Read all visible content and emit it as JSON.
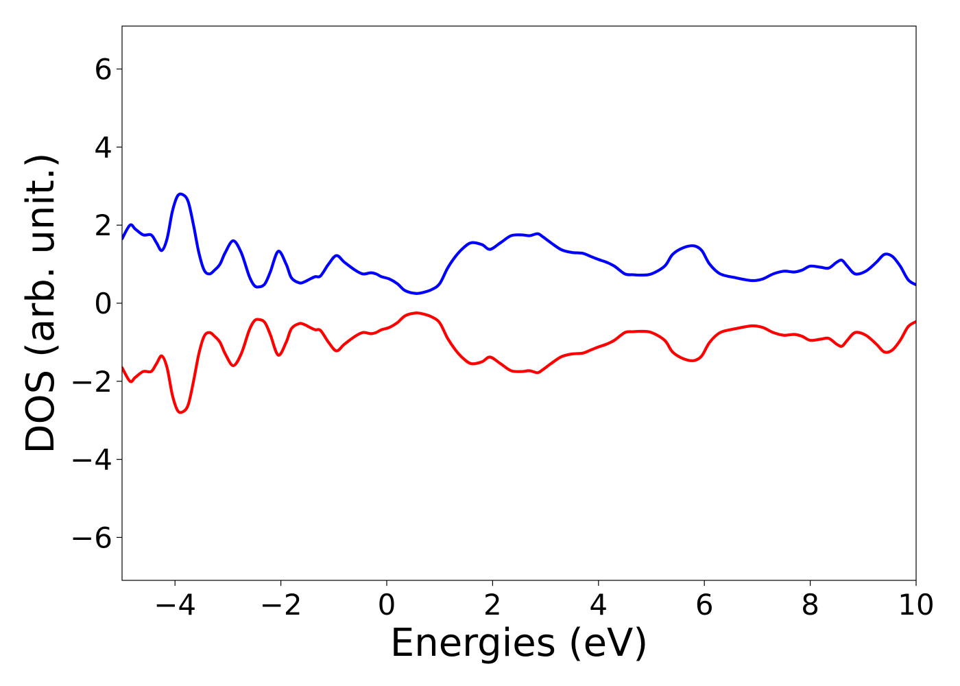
{
  "chart_data": {
    "type": "line",
    "title": "",
    "xlabel": "Energies (eV)",
    "ylabel": "DOS (arb. unit.)",
    "xlim": [
      -5,
      10
    ],
    "ylim": [
      -7.1,
      7.1
    ],
    "x_ticks": [
      -4,
      -2,
      0,
      2,
      4,
      6,
      8,
      10
    ],
    "y_ticks": [
      -6,
      -4,
      -2,
      0,
      2,
      4,
      6
    ],
    "grid": false,
    "legend": "none",
    "series": [
      {
        "color": "#0000ff",
        "x": [
          -5.0,
          -4.85,
          -4.75,
          -4.6,
          -4.45,
          -4.35,
          -4.25,
          -4.15,
          -4.05,
          -3.95,
          -3.85,
          -3.75,
          -3.65,
          -3.55,
          -3.45,
          -3.35,
          -3.25,
          -3.15,
          -3.05,
          -2.9,
          -2.75,
          -2.6,
          -2.5,
          -2.4,
          -2.3,
          -2.2,
          -2.05,
          -1.9,
          -1.8,
          -1.65,
          -1.55,
          -1.45,
          -1.35,
          -1.25,
          -1.1,
          -0.95,
          -0.8,
          -0.6,
          -0.45,
          -0.3,
          -0.2,
          -0.1,
          0.05,
          0.2,
          0.35,
          0.55,
          0.7,
          0.85,
          1.0,
          1.15,
          1.3,
          1.45,
          1.6,
          1.8,
          1.95,
          2.15,
          2.35,
          2.55,
          2.7,
          2.85,
          2.95,
          3.1,
          3.3,
          3.5,
          3.7,
          3.85,
          4.0,
          4.15,
          4.3,
          4.5,
          4.65,
          4.8,
          5.0,
          5.25,
          5.4,
          5.6,
          5.8,
          5.95,
          6.1,
          6.3,
          6.6,
          6.9,
          7.1,
          7.3,
          7.5,
          7.7,
          7.85,
          8.0,
          8.2,
          8.35,
          8.5,
          8.6,
          8.7,
          8.85,
          9.05,
          9.25,
          9.4,
          9.55,
          9.7,
          9.85,
          10.0
        ],
        "y": [
          1.65,
          2.0,
          1.9,
          1.75,
          1.75,
          1.55,
          1.35,
          1.65,
          2.35,
          2.75,
          2.78,
          2.6,
          2.0,
          1.3,
          0.85,
          0.75,
          0.85,
          1.0,
          1.3,
          1.6,
          1.3,
          0.7,
          0.45,
          0.42,
          0.5,
          0.8,
          1.33,
          1.0,
          0.65,
          0.52,
          0.55,
          0.62,
          0.68,
          0.7,
          1.0,
          1.22,
          1.05,
          0.85,
          0.75,
          0.78,
          0.75,
          0.68,
          0.62,
          0.5,
          0.32,
          0.25,
          0.28,
          0.35,
          0.5,
          0.9,
          1.2,
          1.42,
          1.55,
          1.5,
          1.38,
          1.55,
          1.73,
          1.75,
          1.73,
          1.78,
          1.7,
          1.55,
          1.37,
          1.3,
          1.28,
          1.2,
          1.12,
          1.05,
          0.95,
          0.75,
          0.73,
          0.72,
          0.75,
          0.95,
          1.25,
          1.42,
          1.47,
          1.35,
          1.0,
          0.75,
          0.65,
          0.58,
          0.62,
          0.75,
          0.82,
          0.8,
          0.85,
          0.95,
          0.92,
          0.9,
          1.05,
          1.1,
          0.95,
          0.75,
          0.82,
          1.05,
          1.25,
          1.2,
          0.95,
          0.6,
          0.47
        ]
      },
      {
        "color": "#ff0000",
        "x": [
          -5.0,
          -4.85,
          -4.75,
          -4.6,
          -4.45,
          -4.35,
          -4.25,
          -4.15,
          -4.05,
          -3.95,
          -3.85,
          -3.75,
          -3.65,
          -3.55,
          -3.45,
          -3.35,
          -3.25,
          -3.15,
          -3.05,
          -2.9,
          -2.75,
          -2.6,
          -2.5,
          -2.4,
          -2.3,
          -2.2,
          -2.05,
          -1.9,
          -1.8,
          -1.65,
          -1.55,
          -1.45,
          -1.35,
          -1.25,
          -1.1,
          -0.95,
          -0.8,
          -0.6,
          -0.45,
          -0.3,
          -0.2,
          -0.1,
          0.05,
          0.2,
          0.35,
          0.55,
          0.7,
          0.85,
          1.0,
          1.15,
          1.3,
          1.45,
          1.6,
          1.8,
          1.95,
          2.15,
          2.35,
          2.55,
          2.7,
          2.85,
          2.95,
          3.1,
          3.3,
          3.5,
          3.7,
          3.85,
          4.0,
          4.15,
          4.3,
          4.5,
          4.65,
          4.8,
          5.0,
          5.25,
          5.4,
          5.6,
          5.8,
          5.95,
          6.1,
          6.3,
          6.6,
          6.9,
          7.1,
          7.3,
          7.5,
          7.7,
          7.85,
          8.0,
          8.2,
          8.35,
          8.5,
          8.6,
          8.7,
          8.85,
          9.05,
          9.25,
          9.4,
          9.55,
          9.7,
          9.85,
          10.0
        ],
        "y": [
          -1.65,
          -2.0,
          -1.9,
          -1.75,
          -1.75,
          -1.55,
          -1.35,
          -1.65,
          -2.35,
          -2.75,
          -2.78,
          -2.6,
          -2.0,
          -1.3,
          -0.85,
          -0.75,
          -0.85,
          -1.0,
          -1.3,
          -1.6,
          -1.3,
          -0.7,
          -0.45,
          -0.42,
          -0.5,
          -0.8,
          -1.33,
          -1.0,
          -0.65,
          -0.52,
          -0.55,
          -0.62,
          -0.68,
          -0.7,
          -1.0,
          -1.22,
          -1.05,
          -0.85,
          -0.75,
          -0.78,
          -0.75,
          -0.68,
          -0.62,
          -0.5,
          -0.32,
          -0.25,
          -0.28,
          -0.35,
          -0.5,
          -0.9,
          -1.2,
          -1.42,
          -1.55,
          -1.5,
          -1.38,
          -1.55,
          -1.73,
          -1.75,
          -1.73,
          -1.78,
          -1.7,
          -1.55,
          -1.37,
          -1.3,
          -1.28,
          -1.2,
          -1.12,
          -1.05,
          -0.95,
          -0.75,
          -0.73,
          -0.72,
          -0.75,
          -0.95,
          -1.25,
          -1.42,
          -1.47,
          -1.35,
          -1.0,
          -0.75,
          -0.65,
          -0.58,
          -0.62,
          -0.75,
          -0.82,
          -0.8,
          -0.85,
          -0.95,
          -0.92,
          -0.9,
          -1.05,
          -1.1,
          -0.95,
          -0.75,
          -0.82,
          -1.05,
          -1.25,
          -1.2,
          -0.95,
          -0.6,
          -0.47
        ]
      }
    ]
  }
}
